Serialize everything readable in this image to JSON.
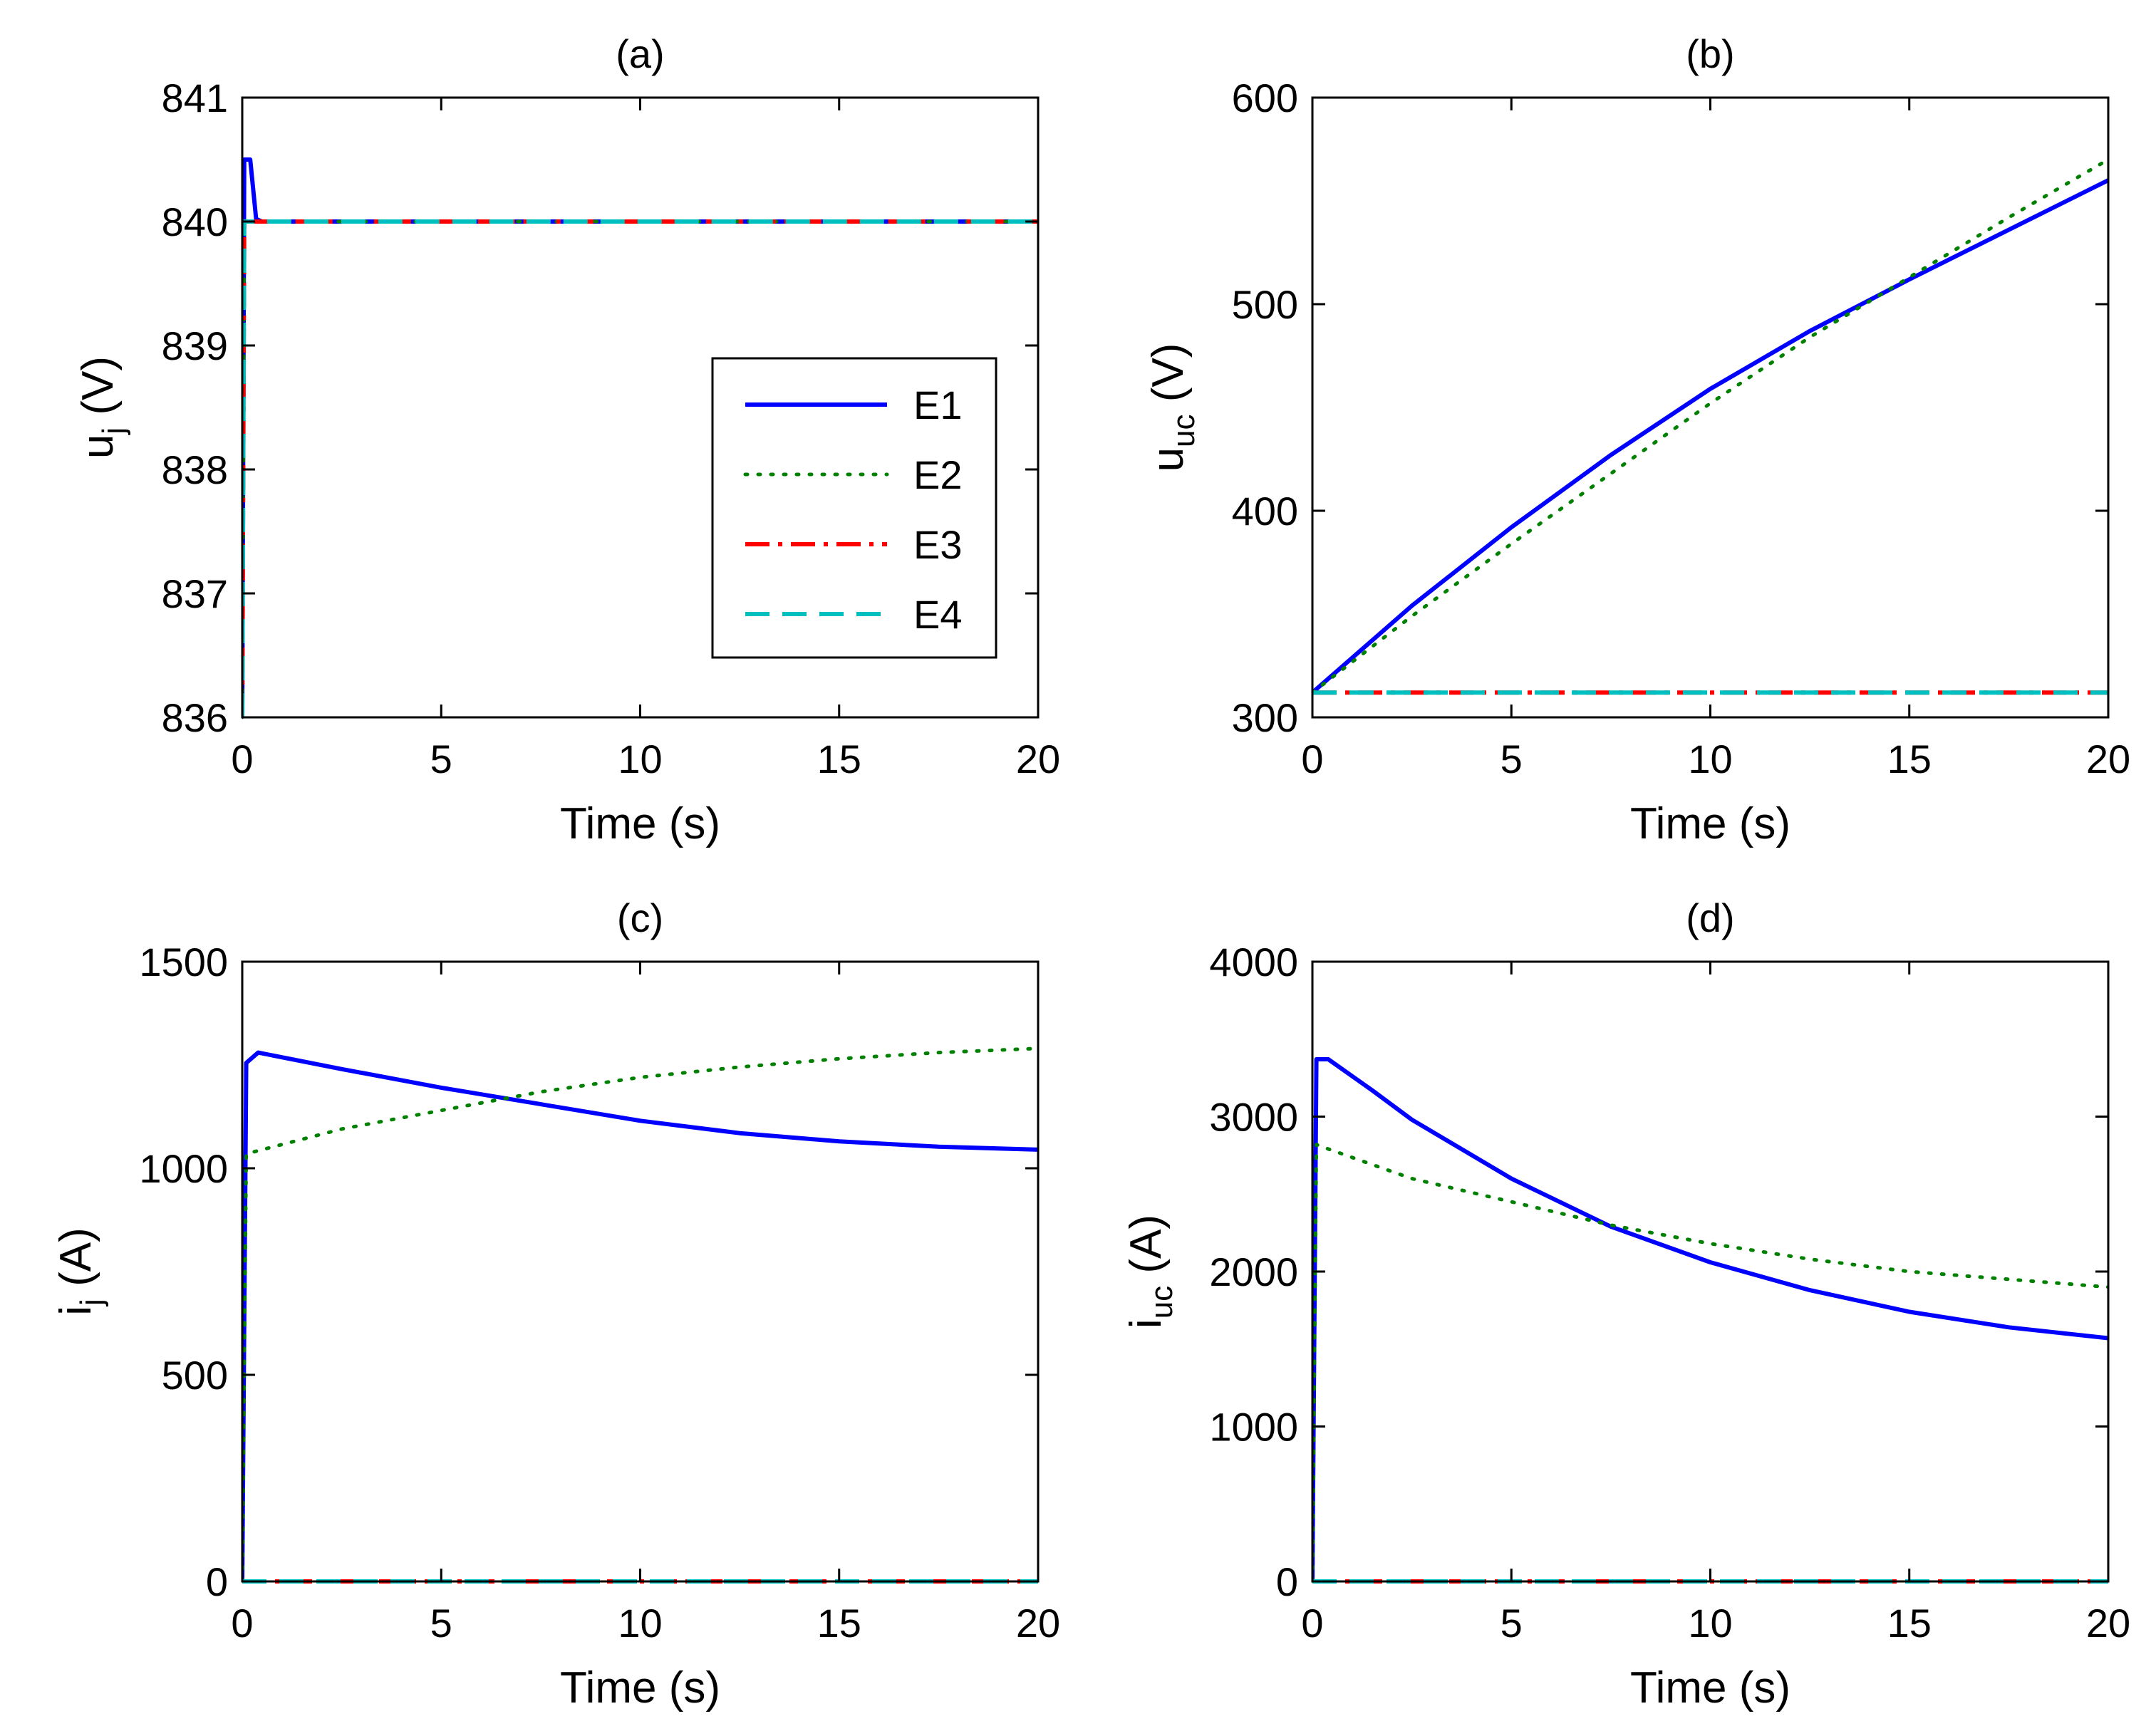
{
  "chart_data": [
    {
      "panel": "a",
      "type": "line",
      "title": "(a)",
      "xlabel": "Time (s)",
      "ylabel": {
        "main": "u",
        "sub": "j",
        "unit": " (V)"
      },
      "xlim": [
        0,
        20
      ],
      "ylim": [
        836,
        841
      ],
      "xticks": [
        0,
        5,
        10,
        15,
        20
      ],
      "yticks": [
        836,
        837,
        838,
        839,
        840,
        841
      ],
      "legend": {
        "position": "center-right",
        "entries": [
          "E1",
          "E2",
          "E3",
          "E4"
        ]
      },
      "series": [
        {
          "name": "E1",
          "x": [
            0,
            0.05,
            0.1,
            0.2,
            0.35,
            0.5,
            20
          ],
          "y": [
            836,
            840.5,
            840.5,
            840.5,
            840.02,
            840,
            840
          ]
        },
        {
          "name": "E2",
          "x": [
            0,
            0.05,
            0.1,
            20
          ],
          "y": [
            836,
            840,
            840,
            840
          ]
        },
        {
          "name": "E3",
          "x": [
            0,
            0.05,
            0.1,
            20
          ],
          "y": [
            836,
            840,
            840,
            840
          ]
        },
        {
          "name": "E4",
          "x": [
            0,
            0.05,
            0.1,
            20
          ],
          "y": [
            836,
            840,
            840,
            840
          ]
        }
      ]
    },
    {
      "panel": "b",
      "type": "line",
      "title": "(b)",
      "xlabel": "Time (s)",
      "ylabel": {
        "main": "u",
        "sub": "uc",
        "unit": " (V)"
      },
      "xlim": [
        0,
        20
      ],
      "ylim": [
        300,
        600
      ],
      "xticks": [
        0,
        5,
        10,
        15,
        20
      ],
      "yticks": [
        300,
        400,
        500,
        600
      ],
      "series": [
        {
          "name": "E1",
          "x": [
            0,
            2.5,
            5,
            7.5,
            10,
            12.5,
            15,
            17.5,
            20
          ],
          "y": [
            312,
            354,
            392,
            427,
            459,
            487,
            512,
            536,
            560
          ]
        },
        {
          "name": "E2",
          "x": [
            0,
            2.5,
            5,
            7.5,
            10,
            12.5,
            15,
            17.5,
            20
          ],
          "y": [
            312,
            349,
            384,
            418,
            452,
            484,
            513,
            542,
            570
          ]
        },
        {
          "name": "E3",
          "x": [
            0,
            20
          ],
          "y": [
            312,
            312
          ]
        },
        {
          "name": "E4",
          "x": [
            0,
            20
          ],
          "y": [
            312,
            312
          ]
        }
      ]
    },
    {
      "panel": "c",
      "type": "line",
      "title": "(c)",
      "xlabel": "Time (s)",
      "ylabel": {
        "main": "i",
        "sub": "j",
        "unit": " (A)"
      },
      "xlim": [
        0,
        20
      ],
      "ylim": [
        0,
        1500
      ],
      "xticks": [
        0,
        5,
        10,
        15,
        20
      ],
      "yticks": [
        0,
        500,
        1000,
        1500
      ],
      "series": [
        {
          "name": "E1",
          "x": [
            0,
            0.1,
            0.4,
            2.5,
            5,
            7.5,
            10,
            12.5,
            15,
            17.5,
            20
          ],
          "y": [
            0,
            1255,
            1280,
            1240,
            1195,
            1155,
            1115,
            1085,
            1065,
            1052,
            1045
          ]
        },
        {
          "name": "E2",
          "x": [
            0,
            0.1,
            0.3,
            2.5,
            5,
            7.5,
            10,
            12.5,
            15,
            17.5,
            20
          ],
          "y": [
            0,
            1035,
            1040,
            1095,
            1140,
            1185,
            1220,
            1245,
            1265,
            1280,
            1290
          ]
        },
        {
          "name": "E3",
          "x": [
            0,
            20
          ],
          "y": [
            0,
            0
          ]
        },
        {
          "name": "E4",
          "x": [
            0,
            20
          ],
          "y": [
            0,
            0
          ]
        }
      ]
    },
    {
      "panel": "d",
      "type": "line",
      "title": "(d)",
      "xlabel": "Time (s)",
      "ylabel": {
        "main": "i",
        "sub": "uc",
        "unit": " (A)"
      },
      "xlim": [
        0,
        20
      ],
      "ylim": [
        0,
        4000
      ],
      "xticks": [
        0,
        5,
        10,
        15,
        20
      ],
      "yticks": [
        0,
        1000,
        2000,
        3000,
        4000
      ],
      "series": [
        {
          "name": "E1",
          "x": [
            0,
            0.1,
            0.4,
            1.5,
            2.5,
            5,
            7.5,
            10,
            12.5,
            15,
            17.5,
            20
          ],
          "y": [
            0,
            3370,
            3370,
            3170,
            2980,
            2600,
            2290,
            2060,
            1880,
            1740,
            1640,
            1570
          ]
        },
        {
          "name": "E2",
          "x": [
            0,
            0.1,
            0.3,
            2.5,
            5,
            7.5,
            10,
            12.5,
            15,
            17.5,
            20
          ],
          "y": [
            0,
            2820,
            2800,
            2600,
            2450,
            2300,
            2180,
            2080,
            2000,
            1950,
            1900
          ]
        },
        {
          "name": "E3",
          "x": [
            0,
            20
          ],
          "y": [
            0,
            0
          ]
        },
        {
          "name": "E4",
          "x": [
            0,
            20
          ],
          "y": [
            0,
            0
          ]
        }
      ]
    }
  ],
  "series_styles": {
    "E1": {
      "color": "#0000ff",
      "dash": "solid"
    },
    "E2": {
      "color": "#008000",
      "dash": "dotted"
    },
    "E3": {
      "color": "#ff0000",
      "dash": "dashdot"
    },
    "E4": {
      "color": "#00bfbf",
      "dash": "dashed"
    }
  }
}
